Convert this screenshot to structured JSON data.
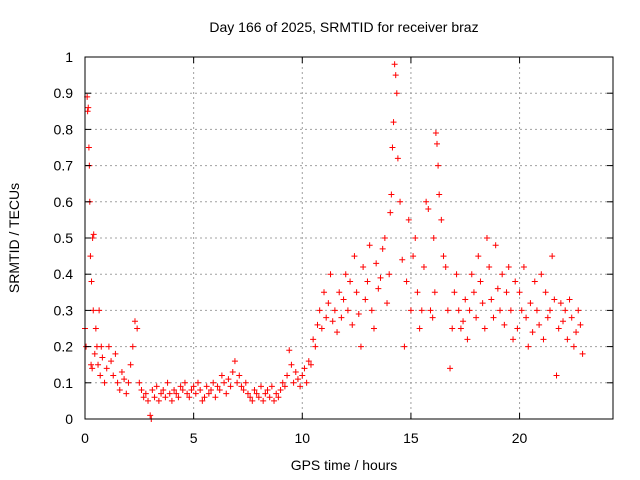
{
  "chart_data": {
    "type": "scatter",
    "title": "Day 166 of 2025, SRMTID for receiver braz",
    "xlabel": "GPS time / hours",
    "ylabel": "SRMTID / TECUs",
    "xlim": [
      0,
      24.3
    ],
    "ylim": [
      0,
      1
    ],
    "xticks": [
      0,
      5,
      10,
      15,
      20
    ],
    "yticks": [
      0,
      0.1,
      0.2,
      0.3,
      0.4,
      0.5,
      0.6,
      0.7,
      0.8,
      0.9,
      1
    ],
    "xtick_labels": [
      "0",
      "5",
      "10",
      "15",
      "20"
    ],
    "ytick_labels": [
      "0",
      "0.1",
      "0.2",
      "0.3",
      "0.4",
      "0.5",
      "0.6",
      "0.7",
      "0.8",
      "0.9",
      "1"
    ],
    "grid": true,
    "marker": "+",
    "color": "#ff0000",
    "series": [
      {
        "name": "SRMTID",
        "x": [
          0.0,
          0.05,
          0.1,
          0.12,
          0.15,
          0.18,
          0.2,
          0.22,
          0.25,
          0.28,
          0.3,
          0.33,
          0.35,
          0.38,
          0.4,
          0.45,
          0.5,
          0.55,
          0.6,
          0.65,
          0.7,
          0.75,
          0.8,
          0.9,
          1.0,
          1.1,
          1.2,
          1.3,
          1.4,
          1.5,
          1.6,
          1.7,
          1.8,
          1.9,
          2.0,
          2.1,
          2.2,
          2.3,
          2.4,
          2.5,
          2.6,
          2.7,
          2.8,
          2.9,
          3.0,
          3.05,
          3.1,
          3.2,
          3.3,
          3.4,
          3.5,
          3.6,
          3.7,
          3.8,
          3.9,
          4.0,
          4.1,
          4.2,
          4.3,
          4.4,
          4.5,
          4.6,
          4.7,
          4.8,
          4.9,
          5.0,
          5.1,
          5.2,
          5.3,
          5.4,
          5.5,
          5.6,
          5.7,
          5.8,
          5.9,
          6.0,
          6.1,
          6.2,
          6.3,
          6.4,
          6.5,
          6.6,
          6.7,
          6.8,
          6.9,
          7.0,
          7.1,
          7.2,
          7.3,
          7.4,
          7.5,
          7.6,
          7.7,
          7.8,
          7.9,
          8.0,
          8.1,
          8.2,
          8.3,
          8.4,
          8.5,
          8.6,
          8.7,
          8.8,
          8.9,
          9.0,
          9.1,
          9.2,
          9.3,
          9.4,
          9.5,
          9.6,
          9.7,
          9.8,
          9.9,
          10.0,
          10.1,
          10.2,
          10.3,
          10.4,
          10.5,
          10.6,
          10.7,
          10.8,
          10.9,
          11.0,
          11.1,
          11.2,
          11.3,
          11.4,
          11.5,
          11.6,
          11.7,
          11.8,
          11.9,
          12.0,
          12.1,
          12.2,
          12.3,
          12.4,
          12.5,
          12.6,
          12.7,
          12.8,
          12.9,
          13.0,
          13.1,
          13.2,
          13.3,
          13.4,
          13.5,
          13.6,
          13.7,
          13.8,
          13.9,
          14.0,
          14.05,
          14.1,
          14.15,
          14.2,
          14.25,
          14.3,
          14.35,
          14.4,
          14.5,
          14.6,
          14.7,
          14.8,
          14.9,
          15.0,
          15.1,
          15.2,
          15.3,
          15.4,
          15.5,
          15.6,
          15.7,
          15.8,
          15.9,
          16.0,
          16.05,
          16.1,
          16.15,
          16.2,
          16.25,
          16.3,
          16.4,
          16.5,
          16.6,
          16.7,
          16.8,
          16.9,
          17.0,
          17.1,
          17.2,
          17.3,
          17.4,
          17.5,
          17.6,
          17.7,
          17.8,
          17.9,
          18.0,
          18.1,
          18.2,
          18.3,
          18.4,
          18.5,
          18.6,
          18.7,
          18.8,
          18.9,
          19.0,
          19.1,
          19.2,
          19.3,
          19.4,
          19.5,
          19.6,
          19.7,
          19.8,
          19.9,
          20.0,
          20.1,
          20.2,
          20.3,
          20.4,
          20.5,
          20.6,
          20.7,
          20.8,
          20.9,
          21.0,
          21.1,
          21.2,
          21.3,
          21.4,
          21.5,
          21.6,
          21.7,
          21.8,
          21.9,
          22.0,
          22.1,
          22.2,
          22.3,
          22.4,
          22.5,
          22.6,
          22.7,
          22.8,
          22.9
        ],
        "y": [
          0.25,
          0.2,
          0.89,
          0.85,
          0.86,
          0.75,
          0.7,
          0.6,
          0.45,
          0.15,
          0.38,
          0.14,
          0.5,
          0.3,
          0.51,
          0.18,
          0.25,
          0.2,
          0.15,
          0.3,
          0.12,
          0.2,
          0.17,
          0.1,
          0.14,
          0.2,
          0.16,
          0.12,
          0.18,
          0.1,
          0.08,
          0.13,
          0.11,
          0.07,
          0.1,
          0.15,
          0.2,
          0.27,
          0.25,
          0.1,
          0.08,
          0.06,
          0.07,
          0.05,
          0.01,
          0.0,
          0.08,
          0.06,
          0.09,
          0.05,
          0.07,
          0.08,
          0.06,
          0.1,
          0.07,
          0.05,
          0.08,
          0.07,
          0.06,
          0.09,
          0.08,
          0.1,
          0.07,
          0.06,
          0.08,
          0.09,
          0.07,
          0.1,
          0.08,
          0.05,
          0.06,
          0.09,
          0.07,
          0.08,
          0.1,
          0.06,
          0.09,
          0.08,
          0.12,
          0.1,
          0.07,
          0.11,
          0.09,
          0.13,
          0.16,
          0.1,
          0.12,
          0.09,
          0.08,
          0.1,
          0.07,
          0.06,
          0.05,
          0.08,
          0.07,
          0.06,
          0.09,
          0.05,
          0.07,
          0.08,
          0.06,
          0.09,
          0.05,
          0.07,
          0.06,
          0.08,
          0.1,
          0.09,
          0.12,
          0.19,
          0.15,
          0.1,
          0.13,
          0.11,
          0.09,
          0.12,
          0.14,
          0.1,
          0.16,
          0.15,
          0.22,
          0.2,
          0.26,
          0.3,
          0.25,
          0.35,
          0.28,
          0.32,
          0.4,
          0.27,
          0.3,
          0.24,
          0.35,
          0.28,
          0.33,
          0.4,
          0.3,
          0.38,
          0.26,
          0.45,
          0.35,
          0.29,
          0.2,
          0.42,
          0.33,
          0.38,
          0.48,
          0.3,
          0.25,
          0.43,
          0.36,
          0.39,
          0.47,
          0.5,
          0.32,
          0.4,
          0.57,
          0.62,
          0.75,
          0.82,
          0.98,
          0.95,
          0.9,
          0.72,
          0.6,
          0.44,
          0.2,
          0.38,
          0.55,
          0.3,
          0.45,
          0.5,
          0.35,
          0.25,
          0.3,
          0.42,
          0.6,
          0.58,
          0.3,
          0.28,
          0.5,
          0.35,
          0.79,
          0.76,
          0.7,
          0.62,
          0.55,
          0.45,
          0.42,
          0.3,
          0.14,
          0.25,
          0.35,
          0.4,
          0.3,
          0.25,
          0.27,
          0.33,
          0.22,
          0.3,
          0.4,
          0.35,
          0.28,
          0.45,
          0.38,
          0.32,
          0.25,
          0.5,
          0.42,
          0.33,
          0.28,
          0.48,
          0.36,
          0.3,
          0.4,
          0.26,
          0.35,
          0.42,
          0.3,
          0.22,
          0.38,
          0.25,
          0.35,
          0.3,
          0.42,
          0.28,
          0.2,
          0.32,
          0.24,
          0.38,
          0.3,
          0.26,
          0.4,
          0.22,
          0.35,
          0.28,
          0.3,
          0.45,
          0.33,
          0.12,
          0.25,
          0.32,
          0.27,
          0.3,
          0.22,
          0.33,
          0.28,
          0.2,
          0.24,
          0.3,
          0.26,
          0.18
        ]
      }
    ]
  }
}
